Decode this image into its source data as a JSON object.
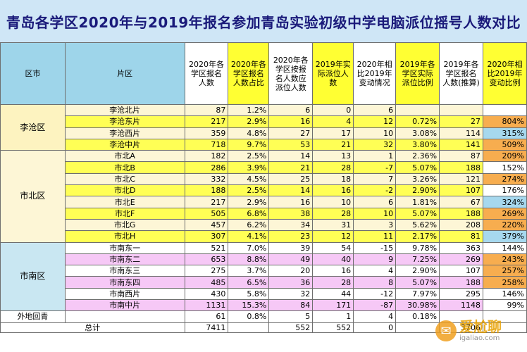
{
  "title": "青岛各学区2020年与2019年报名参加青岛实验初级中学电脑派位摇号人数对比",
  "headers": [
    "区市",
    "片区",
    "2020年各学区报名人数",
    "2020年各学区报名人数占比",
    "2020年各学区按报名人数应派位人数",
    "2019年实际派位人数",
    "2020年相比2019年变动情况",
    "2019年各学区实际派位比例",
    "2019年各学区报名人数(推算)",
    "2020年相比2019年变动比例"
  ],
  "regions": [
    {
      "name": "李沧区",
      "rows": [
        {
          "area": "李沧北片",
          "c2020": "87",
          "share": "1.2%",
          "alloc": "6",
          "a2019": "0",
          "change": "6",
          "ratio2019": "",
          "est2019": "",
          "pct": ""
        },
        {
          "area": "李沧东片",
          "c2020": "217",
          "share": "2.9%",
          "alloc": "16",
          "a2019": "4",
          "change": "12",
          "ratio2019": "0.72%",
          "est2019": "27",
          "pct": "804%"
        },
        {
          "area": "李沧西片",
          "c2020": "359",
          "share": "4.8%",
          "alloc": "27",
          "a2019": "17",
          "change": "10",
          "ratio2019": "3.08%",
          "est2019": "114",
          "pct": "315%"
        },
        {
          "area": "李沧中片",
          "c2020": "718",
          "share": "9.7%",
          "alloc": "53",
          "a2019": "21",
          "change": "32",
          "ratio2019": "3.80%",
          "est2019": "141",
          "pct": "509%"
        }
      ]
    },
    {
      "name": "市北区",
      "rows": [
        {
          "area": "市北A",
          "c2020": "182",
          "share": "2.5%",
          "alloc": "14",
          "a2019": "13",
          "change": "1",
          "ratio2019": "2.36%",
          "est2019": "87",
          "pct": "209%"
        },
        {
          "area": "市北B",
          "c2020": "286",
          "share": "3.9%",
          "alloc": "21",
          "a2019": "28",
          "change": "-7",
          "ratio2019": "5.07%",
          "est2019": "188",
          "pct": "152%"
        },
        {
          "area": "市北C",
          "c2020": "332",
          "share": "4.5%",
          "alloc": "25",
          "a2019": "18",
          "change": "7",
          "ratio2019": "3.26%",
          "est2019": "121",
          "pct": "274%"
        },
        {
          "area": "市北D",
          "c2020": "188",
          "share": "2.5%",
          "alloc": "14",
          "a2019": "16",
          "change": "-2",
          "ratio2019": "2.90%",
          "est2019": "107",
          "pct": "176%"
        },
        {
          "area": "市北E",
          "c2020": "217",
          "share": "2.9%",
          "alloc": "16",
          "a2019": "10",
          "change": "6",
          "ratio2019": "1.81%",
          "est2019": "67",
          "pct": "324%"
        },
        {
          "area": "市北F",
          "c2020": "505",
          "share": "6.8%",
          "alloc": "38",
          "a2019": "28",
          "change": "10",
          "ratio2019": "5.07%",
          "est2019": "188",
          "pct": "269%"
        },
        {
          "area": "市北G",
          "c2020": "457",
          "share": "6.2%",
          "alloc": "34",
          "a2019": "31",
          "change": "3",
          "ratio2019": "5.62%",
          "est2019": "208",
          "pct": "220%"
        },
        {
          "area": "市北H",
          "c2020": "307",
          "share": "4.1%",
          "alloc": "23",
          "a2019": "12",
          "change": "11",
          "ratio2019": "2.17%",
          "est2019": "81",
          "pct": "379%"
        }
      ]
    },
    {
      "name": "市南区",
      "rows": [
        {
          "area": "市南东一",
          "c2020": "521",
          "share": "7.0%",
          "alloc": "39",
          "a2019": "54",
          "change": "-15",
          "ratio2019": "9.78%",
          "est2019": "363",
          "pct": "144%"
        },
        {
          "area": "市南东二",
          "c2020": "653",
          "share": "8.8%",
          "alloc": "49",
          "a2019": "40",
          "change": "9",
          "ratio2019": "7.25%",
          "est2019": "269",
          "pct": "243%"
        },
        {
          "area": "市南东三",
          "c2020": "275",
          "share": "3.7%",
          "alloc": "20",
          "a2019": "16",
          "change": "4",
          "ratio2019": "2.90%",
          "est2019": "107",
          "pct": "257%"
        },
        {
          "area": "市南东四",
          "c2020": "485",
          "share": "6.5%",
          "alloc": "36",
          "a2019": "28",
          "change": "8",
          "ratio2019": "5.07%",
          "est2019": "188",
          "pct": "258%"
        },
        {
          "area": "市南西片",
          "c2020": "430",
          "share": "5.8%",
          "alloc": "32",
          "a2019": "44",
          "change": "-12",
          "ratio2019": "7.97%",
          "est2019": "295",
          "pct": "146%"
        },
        {
          "area": "市南中片",
          "c2020": "1131",
          "share": "15.3%",
          "alloc": "84",
          "a2019": "171",
          "change": "-87",
          "ratio2019": "30.98%",
          "est2019": "1148",
          "pct": "99%"
        }
      ]
    },
    {
      "name": "外地回青",
      "rows": [
        {
          "area": "",
          "c2020": "61",
          "share": "0.8%",
          "alloc": "5",
          "a2019": "1",
          "change": "4",
          "ratio2019": "0.18%",
          "est2019": "",
          "pct": ""
        }
      ]
    }
  ],
  "total": {
    "label": "总计",
    "c2020": "7411",
    "alloc": "552",
    "a2019": "552",
    "change": "0",
    "est2019": "3706"
  },
  "watermark": {
    "main": "爱尬聊",
    "sub": "igaliao.com",
    "icon": "speech-bubble-icon"
  }
}
